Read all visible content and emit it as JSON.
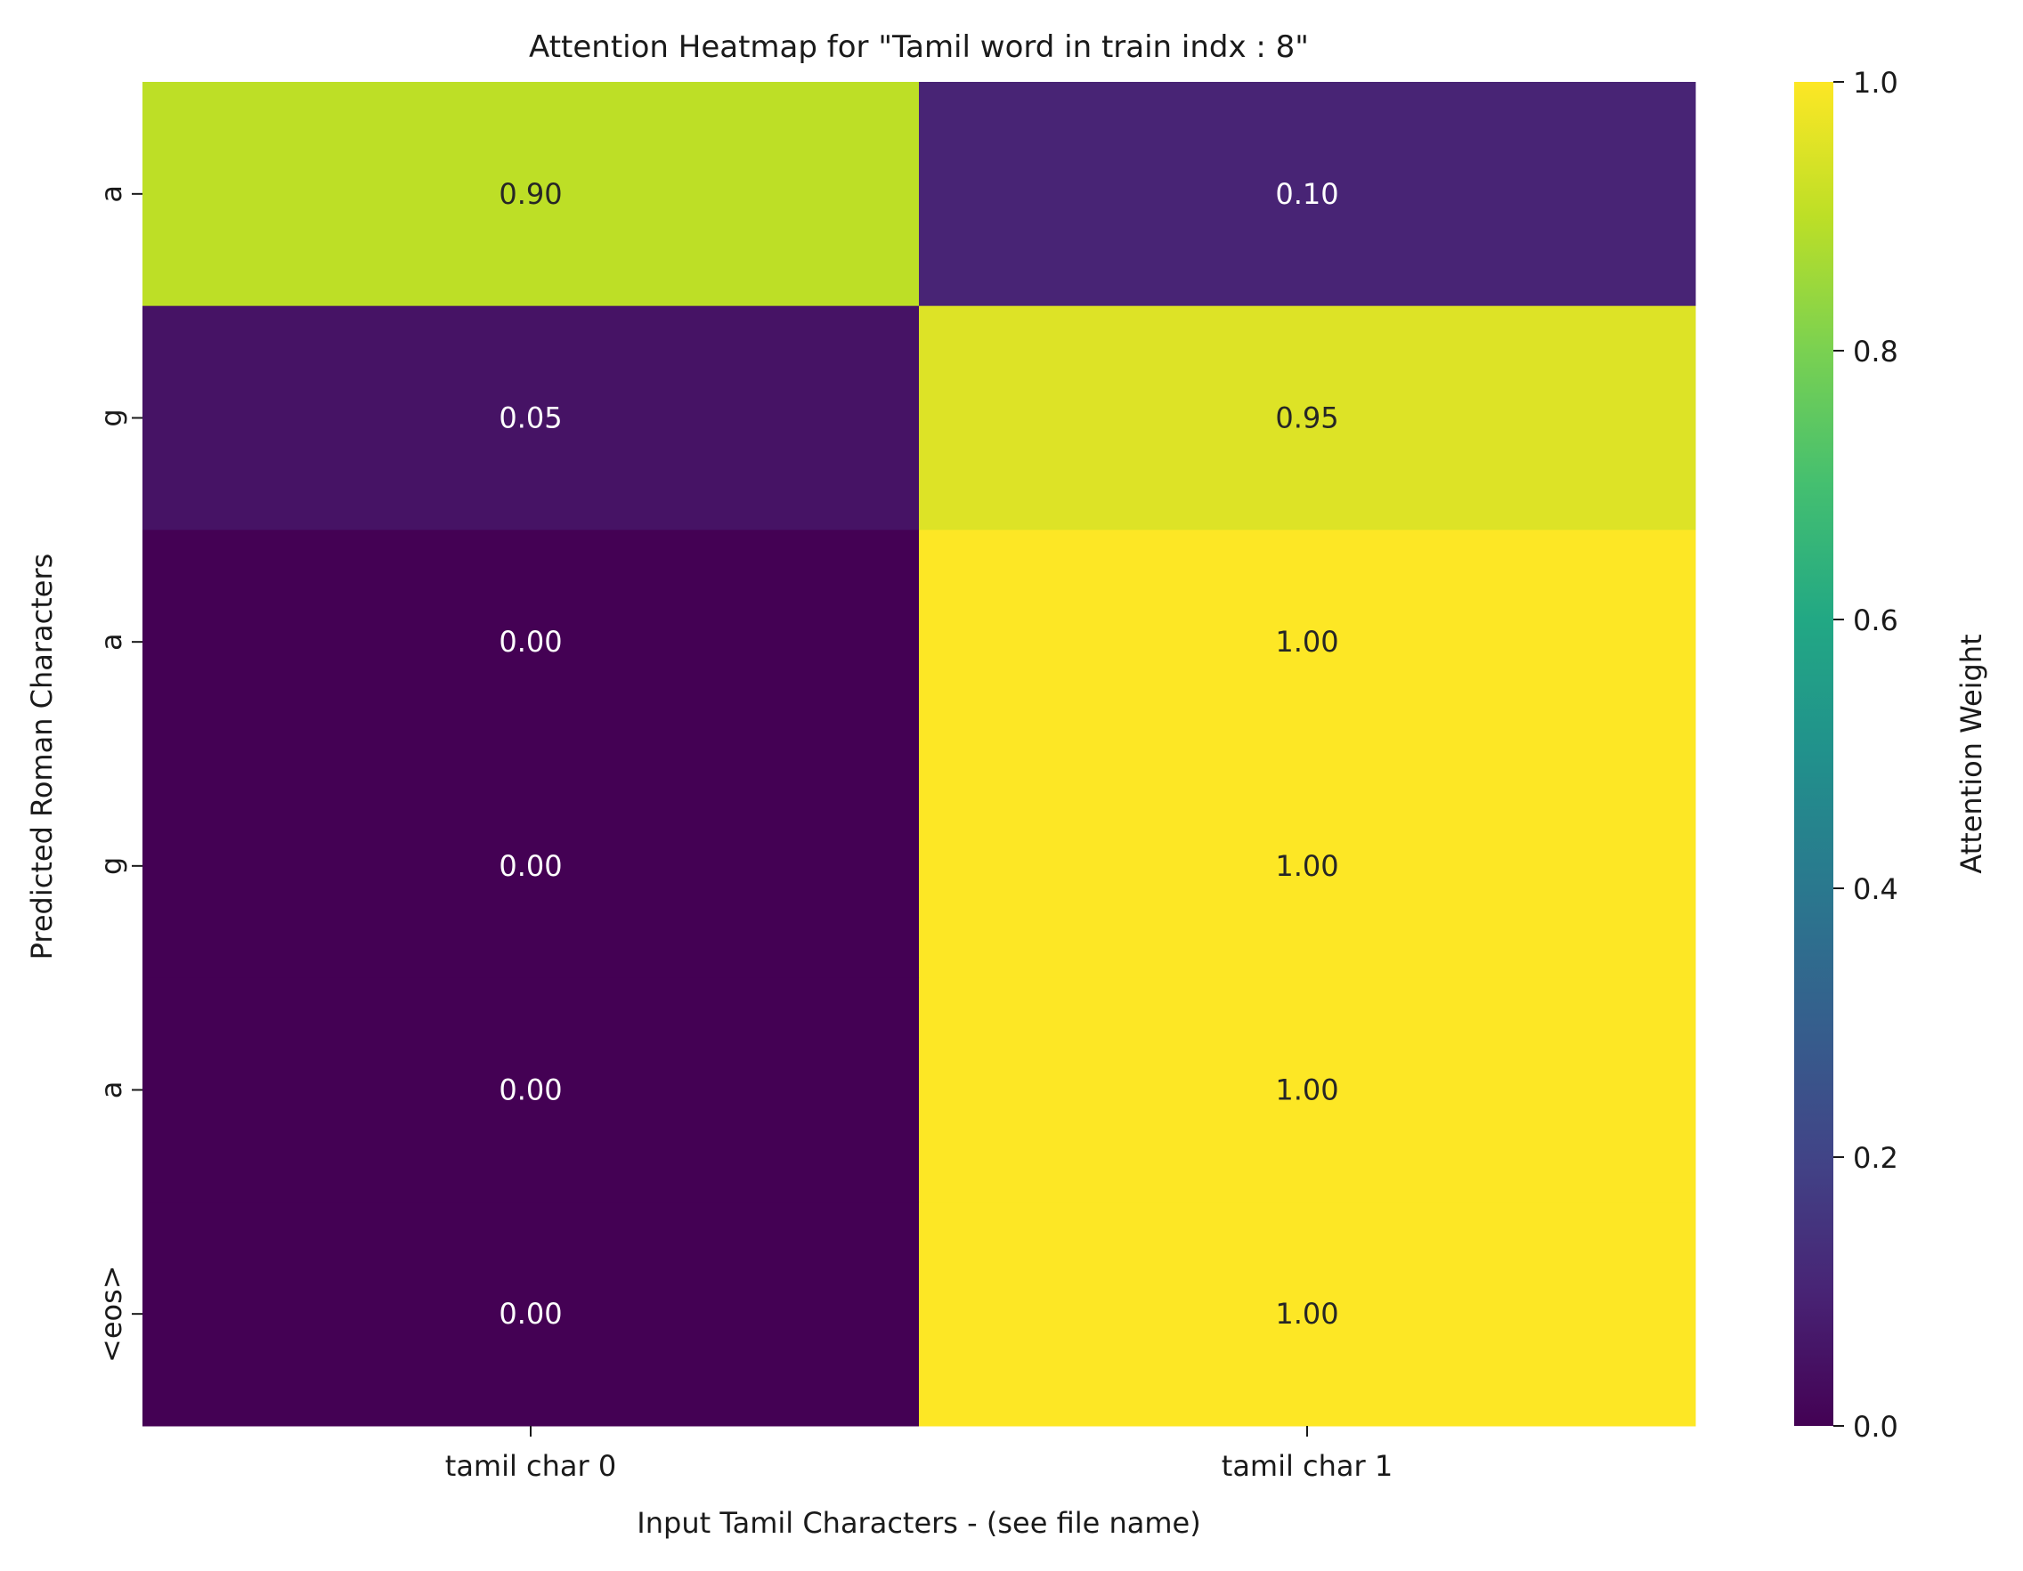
{
  "chart_data": {
    "type": "heatmap",
    "title": "Attention Heatmap for \"Tamil word  in train indx :  8\"",
    "xlabel": "Input Tamil Characters - (see file name)",
    "ylabel": "Predicted Roman Characters",
    "x_categories": [
      "tamil char 0",
      "tamil char 1"
    ],
    "y_categories": [
      "a",
      "g",
      "a",
      "g",
      "a",
      "<eos>"
    ],
    "values": [
      [
        0.9,
        0.1
      ],
      [
        0.05,
        0.95
      ],
      [
        0.0,
        1.0
      ],
      [
        0.0,
        1.0
      ],
      [
        0.0,
        1.0
      ],
      [
        0.0,
        1.0
      ]
    ],
    "value_labels": [
      [
        "0.90",
        "0.10"
      ],
      [
        "0.05",
        "0.95"
      ],
      [
        "0.00",
        "1.00"
      ],
      [
        "0.00",
        "1.00"
      ],
      [
        "0.00",
        "1.00"
      ],
      [
        "0.00",
        "1.00"
      ]
    ],
    "colormap": "viridis",
    "colorbar": {
      "label": "Attention Weight",
      "range": [
        0.0,
        1.0
      ],
      "ticks": [
        "0.0",
        "0.2",
        "0.4",
        "0.6",
        "0.8",
        "1.0"
      ],
      "tick_values": [
        0.0,
        0.2,
        0.4,
        0.6,
        0.8,
        1.0
      ]
    },
    "grid": false
  }
}
